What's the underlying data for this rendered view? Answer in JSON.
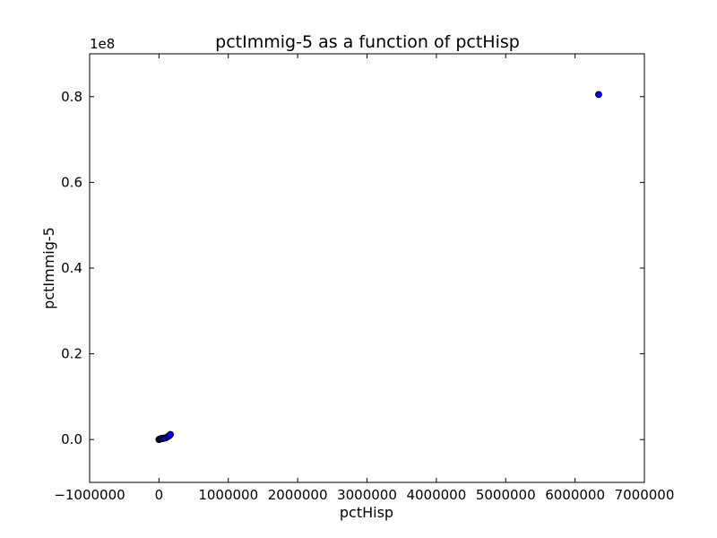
{
  "chart_data": {
    "type": "scatter",
    "title": "pctImmig-5 as a function of pctHisp",
    "xlabel": "pctHisp",
    "ylabel": "pctImmig-5",
    "xlim": [
      -1000000,
      7000000
    ],
    "ylim": [
      -10000000,
      90000000
    ],
    "x_ticks": [
      -1000000,
      0,
      1000000,
      2000000,
      3000000,
      4000000,
      5000000,
      6000000,
      7000000
    ],
    "x_tick_labels": [
      "−1000000",
      "0",
      "1000000",
      "2000000",
      "3000000",
      "4000000",
      "5000000",
      "6000000",
      "7000000"
    ],
    "y_ticks": [
      0,
      20000000,
      40000000,
      60000000,
      80000000
    ],
    "y_tick_labels": [
      "0.0",
      "0.2",
      "0.4",
      "0.6",
      "0.8"
    ],
    "y_offset_label": "1e8",
    "grid": false,
    "marker_color": "#0000ff",
    "points": [
      {
        "x": 0,
        "y": 0
      },
      {
        "x": 10000,
        "y": 100000
      },
      {
        "x": 20000,
        "y": 150000
      },
      {
        "x": 35000,
        "y": 250000
      },
      {
        "x": 50000,
        "y": 200000
      },
      {
        "x": 60000,
        "y": 300000
      },
      {
        "x": 80000,
        "y": 350000
      },
      {
        "x": 100000,
        "y": 400000
      },
      {
        "x": 120000,
        "y": 600000
      },
      {
        "x": 135000,
        "y": 800000
      },
      {
        "x": 150000,
        "y": 900000
      },
      {
        "x": 165000,
        "y": 1200000
      },
      {
        "x": 6340000,
        "y": 80500000
      }
    ]
  }
}
